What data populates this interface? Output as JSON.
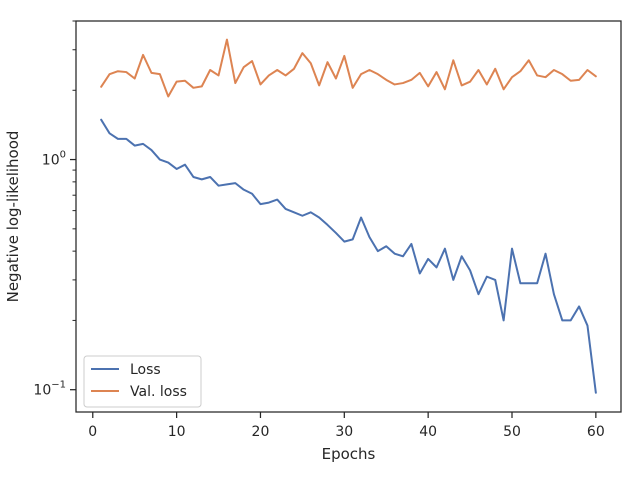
{
  "chart_data": {
    "type": "line",
    "title": "",
    "xlabel": "Epochs",
    "ylabel": "Negative log-likelihood",
    "yscale": "log",
    "xlim": [
      -2,
      63
    ],
    "ylim": [
      0.08,
      4.0
    ],
    "x_ticks": [
      0,
      10,
      20,
      30,
      40,
      50,
      60
    ],
    "x_tick_labels": [
      "0",
      "10",
      "20",
      "30",
      "40",
      "50",
      "60"
    ],
    "y_major_ticks": [
      0.1,
      1.0
    ],
    "y_major_tick_labels": [
      "10",
      "10"
    ],
    "y_major_tick_exponents": [
      "−1",
      "0"
    ],
    "y_minor_ticks": [
      0.2,
      0.3,
      0.4,
      0.5,
      0.6,
      0.7,
      0.8,
      0.9,
      2,
      3,
      4
    ],
    "grid": false,
    "legend_position": "lower-left",
    "series": [
      {
        "name": "Loss",
        "color": "#4c72b0",
        "x": [
          1,
          2,
          3,
          4,
          5,
          6,
          7,
          8,
          9,
          10,
          11,
          12,
          13,
          14,
          15,
          16,
          17,
          18,
          19,
          20,
          21,
          22,
          23,
          24,
          25,
          26,
          27,
          28,
          29,
          30,
          31,
          32,
          33,
          34,
          35,
          36,
          37,
          38,
          39,
          40,
          41,
          42,
          43,
          44,
          45,
          46,
          47,
          48,
          49,
          50,
          51,
          52,
          53,
          54,
          55,
          56,
          57,
          58,
          59,
          60
        ],
        "values": [
          1.49,
          1.3,
          1.23,
          1.23,
          1.15,
          1.17,
          1.1,
          1.0,
          0.97,
          0.91,
          0.95,
          0.84,
          0.82,
          0.84,
          0.77,
          0.78,
          0.79,
          0.74,
          0.71,
          0.64,
          0.65,
          0.67,
          0.61,
          0.59,
          0.57,
          0.59,
          0.56,
          0.52,
          0.48,
          0.44,
          0.45,
          0.56,
          0.46,
          0.4,
          0.42,
          0.39,
          0.38,
          0.43,
          0.32,
          0.37,
          0.34,
          0.41,
          0.3,
          0.38,
          0.33,
          0.26,
          0.31,
          0.3,
          0.2,
          0.41,
          0.29,
          0.29,
          0.29,
          0.39,
          0.26,
          0.2,
          0.2,
          0.23,
          0.19,
          0.097
        ]
      },
      {
        "name": "Val. loss",
        "color": "#dd8452",
        "x": [
          1,
          2,
          3,
          4,
          5,
          6,
          7,
          8,
          9,
          10,
          11,
          12,
          13,
          14,
          15,
          16,
          17,
          18,
          19,
          20,
          21,
          22,
          23,
          24,
          25,
          26,
          27,
          28,
          29,
          30,
          31,
          32,
          33,
          34,
          35,
          36,
          37,
          38,
          39,
          40,
          41,
          42,
          43,
          44,
          45,
          46,
          47,
          48,
          49,
          50,
          51,
          52,
          53,
          54,
          55,
          56,
          57,
          58,
          59,
          60
        ],
        "values": [
          2.07,
          2.35,
          2.42,
          2.4,
          2.25,
          2.85,
          2.38,
          2.35,
          1.88,
          2.18,
          2.2,
          2.05,
          2.08,
          2.45,
          2.32,
          3.32,
          2.15,
          2.52,
          2.68,
          2.12,
          2.32,
          2.45,
          2.32,
          2.48,
          2.9,
          2.62,
          2.1,
          2.65,
          2.25,
          2.82,
          2.05,
          2.35,
          2.45,
          2.35,
          2.22,
          2.12,
          2.15,
          2.22,
          2.38,
          2.08,
          2.4,
          2.02,
          2.7,
          2.1,
          2.18,
          2.45,
          2.12,
          2.48,
          2.02,
          2.28,
          2.42,
          2.7,
          2.32,
          2.28,
          2.45,
          2.35,
          2.2,
          2.22,
          2.45,
          2.3
        ]
      }
    ]
  }
}
